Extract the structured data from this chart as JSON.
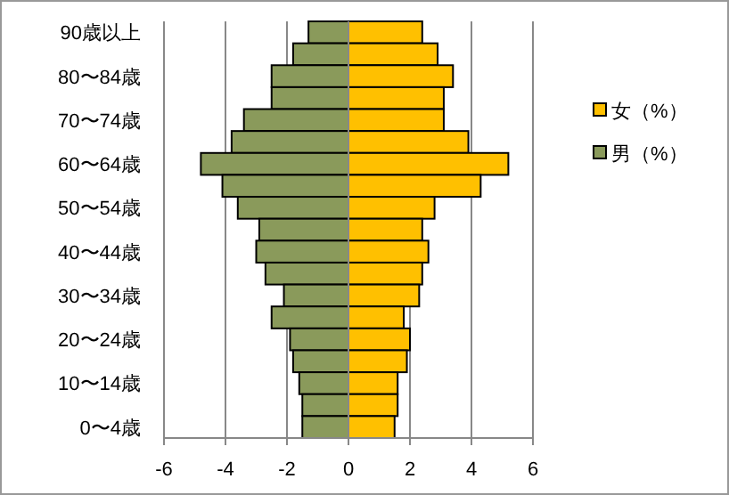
{
  "chart_data": {
    "type": "bar",
    "orientation": "horizontal",
    "stacked": true,
    "categories": [
      "90歳以上",
      null,
      "80〜84歳",
      null,
      "70〜74歳",
      null,
      "60〜64歳",
      null,
      "50〜54歳",
      null,
      "40〜44歳",
      null,
      "30〜34歳",
      null,
      "20〜24歳",
      null,
      "10〜14歳",
      null,
      "0〜4歳"
    ],
    "series": [
      {
        "name": "女（%）",
        "color": "#ffc000",
        "values": [
          2.4,
          2.9,
          3.4,
          3.1,
          3.1,
          3.9,
          5.2,
          4.3,
          2.8,
          2.4,
          2.6,
          2.4,
          2.3,
          1.8,
          2.0,
          1.9,
          1.6,
          1.6,
          1.5
        ]
      },
      {
        "name": "男（%）",
        "color": "#8a9a5b",
        "values": [
          -1.3,
          -1.8,
          -2.5,
          -2.5,
          -3.4,
          -3.8,
          -4.8,
          -4.1,
          -3.6,
          -2.9,
          -3.0,
          -2.7,
          -2.1,
          -2.5,
          -1.9,
          -1.8,
          -1.6,
          -1.5,
          -1.5
        ]
      }
    ],
    "xlim": [
      -6,
      6
    ],
    "xticks": [
      -6,
      -4,
      -2,
      0,
      2,
      4,
      6
    ],
    "grid": "x",
    "legend": "right"
  }
}
